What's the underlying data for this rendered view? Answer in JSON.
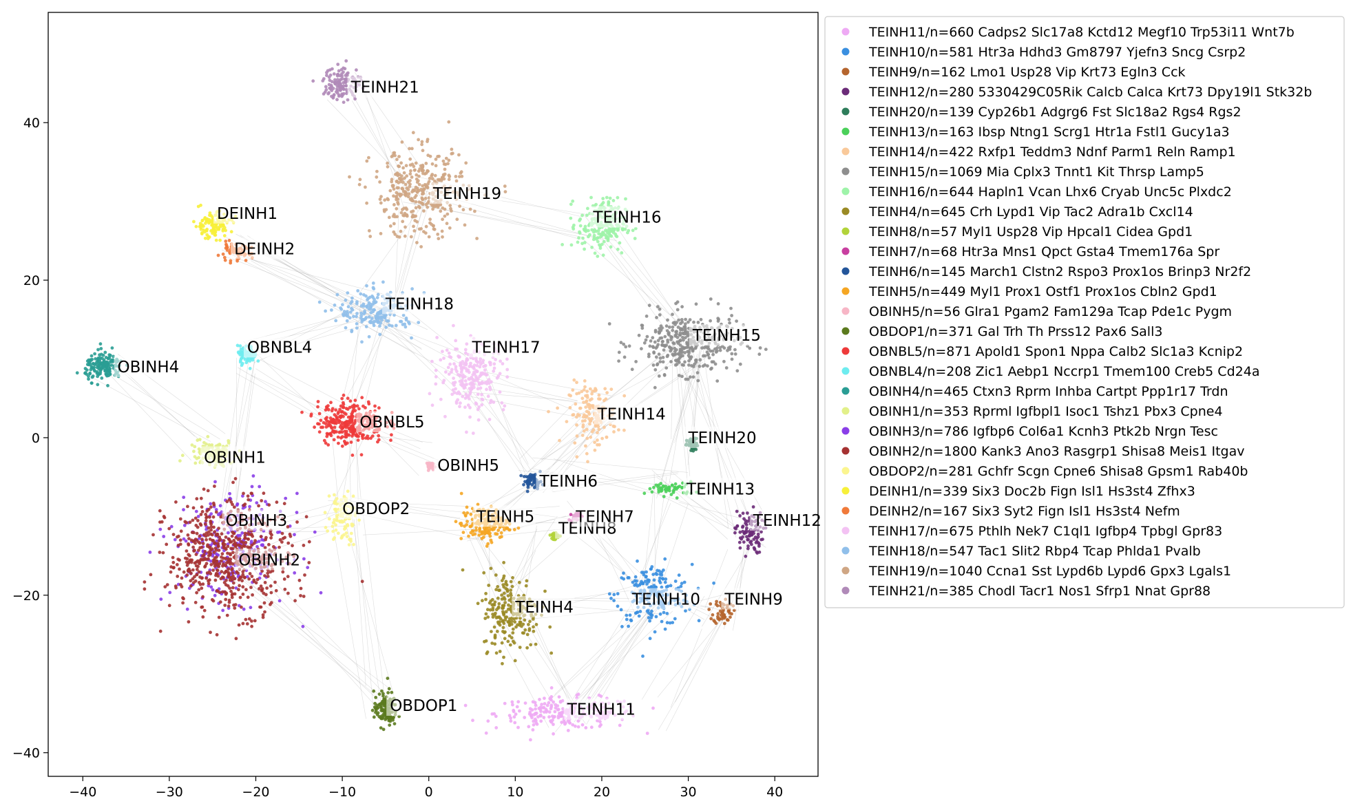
{
  "chart_data": {
    "type": "scatter",
    "title": "",
    "xlabel": "",
    "ylabel": "",
    "xlim": [
      -44,
      45
    ],
    "ylim": [
      -43,
      54
    ],
    "xticks": [
      -40,
      -30,
      -20,
      -10,
      0,
      10,
      20,
      30,
      40
    ],
    "yticks": [
      -40,
      -20,
      0,
      20,
      40
    ],
    "grid": false,
    "legend_position": "outside-right",
    "series": [
      {
        "name": "TEINH11/n=660 Cadps2 Slc17a8 Kctd12 Megf10 Trp53i11 Wnt7b",
        "label": "TEINH11",
        "color": "#eeaaf4",
        "center": [
          16,
          -35
        ],
        "spread": [
          7.5,
          1.8
        ],
        "count": 660,
        "label_pos": [
          16,
          -34.5
        ]
      },
      {
        "name": "TEINH10/n=581 Htr3a Hdhd3 Gm8797 Yjefn3 Sncg Csrp2",
        "label": "TEINH10",
        "color": "#3a8fe0",
        "center": [
          26,
          -20
        ],
        "spread": [
          4,
          3.5
        ],
        "count": 581,
        "label_pos": [
          23.5,
          -20.5
        ]
      },
      {
        "name": "TEINH9/n=162 Lmo1 Usp28 Vip Krt73 Egln3 Cck",
        "label": "TEINH9",
        "color": "#b5652e",
        "center": [
          34,
          -22
        ],
        "spread": [
          1,
          1.5
        ],
        "count": 162,
        "label_pos": [
          34.2,
          -20.5
        ]
      },
      {
        "name": "TEINH12/n=280 5330429C05Rik Calcb Calca Krt73 Dpy19l1 Stk32b",
        "label": "TEINH12",
        "color": "#6b2b78",
        "center": [
          37,
          -12
        ],
        "spread": [
          1.5,
          2.5
        ],
        "count": 280,
        "label_pos": [
          37.5,
          -10.5
        ]
      },
      {
        "name": "TEINH20/n=139 Cyp26b1 Adgrg6 Fst Slc18a2 Rgs4 Rgs2",
        "label": "TEINH20",
        "color": "#2e7d5b",
        "center": [
          30.5,
          -1
        ],
        "spread": [
          0.6,
          0.8
        ],
        "count": 139,
        "label_pos": [
          30,
          0
        ]
      },
      {
        "name": "TEINH13/n=163 Ibsp Ntng1 Scrg1 Htr1a Fstl1 Gucy1a3",
        "label": "TEINH13",
        "color": "#4bd05a",
        "center": [
          28,
          -6.5
        ],
        "spread": [
          2.5,
          0.8
        ],
        "count": 163,
        "label_pos": [
          29.8,
          -6.5
        ]
      },
      {
        "name": "TEINH14/n=422 Rxfp1 Teddm3 Ndnf Parm1 Reln Ramp1",
        "label": "TEINH14",
        "color": "#f9c99a",
        "center": [
          19,
          3
        ],
        "spread": [
          2.5,
          3.5
        ],
        "count": 422,
        "label_pos": [
          19.5,
          3
        ]
      },
      {
        "name": "TEINH15/n=1069 Mia Cplx3 Tnnt1 Kit Thrsp Lamp5",
        "label": "TEINH15",
        "color": "#8e8e8e",
        "center": [
          30,
          12
        ],
        "spread": [
          5.5,
          3.5
        ],
        "count": 1069,
        "label_pos": [
          30.5,
          13
        ]
      },
      {
        "name": "TEINH16/n=644 Hapln1 Vcan Lhx6 Cryab Unc5c Plxdc2",
        "label": "TEINH16",
        "color": "#9ef3a9",
        "center": [
          20,
          27
        ],
        "spread": [
          2.5,
          3
        ],
        "count": 644,
        "label_pos": [
          19,
          28
        ]
      },
      {
        "name": "TEINH4/n=645 Crh Lypd1 Vip Tac2 Adra1b Cxcl14",
        "label": "TEINH4",
        "color": "#9a8a25",
        "center": [
          9.5,
          -22
        ],
        "spread": [
          3,
          4.5
        ],
        "count": 645,
        "label_pos": [
          10,
          -21.5
        ]
      },
      {
        "name": "TEINH8/n=57 Myl1 Usp28 Vip Hpcal1 Cidea Gpd1",
        "label": "TEINH8",
        "color": "#b2d33a",
        "center": [
          14.5,
          -12.5
        ],
        "spread": [
          0.6,
          0.5
        ],
        "count": 57,
        "label_pos": [
          15,
          -11.5
        ]
      },
      {
        "name": "TEINH7/n=68 Htr3a Mns1 Qpct Gsta4 Tmem176a Spr",
        "label": "TEINH7",
        "color": "#c83fa0",
        "center": [
          17,
          -10
        ],
        "spread": [
          0.5,
          0.6
        ],
        "count": 68,
        "label_pos": [
          17,
          -10
        ]
      },
      {
        "name": "TEINH6/n=145 March1 Clstn2 Rspo3 Prox1os Brinp3 Nr2f2",
        "label": "TEINH6",
        "color": "#23559a",
        "center": [
          12,
          -5.5
        ],
        "spread": [
          1,
          0.8
        ],
        "count": 145,
        "label_pos": [
          12.8,
          -5.5
        ]
      },
      {
        "name": "TEINH5/n=449 Myl1 Prox1 Ostf1 Prox1os Cbln2 Gpd1",
        "label": "TEINH5",
        "color": "#f5a623",
        "center": [
          6.5,
          -11
        ],
        "spread": [
          2.5,
          2
        ],
        "count": 449,
        "label_pos": [
          5.5,
          -10
        ]
      },
      {
        "name": "OBINH5/n=56 Glra1 Pgam2 Fam129a Tcap Pde1c Pygm",
        "label": "OBINH5",
        "color": "#f7b6c6",
        "center": [
          0,
          -3.5
        ],
        "spread": [
          0.4,
          0.4
        ],
        "count": 56,
        "label_pos": [
          1,
          -3.5
        ]
      },
      {
        "name": "OBDOP1/n=371 Gal Trh Th Prss12 Pax6 Sall3",
        "label": "OBDOP1",
        "color": "#5b7a1e",
        "center": [
          -5,
          -34.5
        ],
        "spread": [
          1.2,
          2
        ],
        "count": 371,
        "label_pos": [
          -4.5,
          -34
        ]
      },
      {
        "name": "OBNBL5/n=871 Apold1 Spon1 Nppa Calb2 Slc1a3 Kcnip2",
        "label": "OBNBL5",
        "color": "#ee3a3a",
        "center": [
          -9,
          2
        ],
        "spread": [
          3.5,
          2.5
        ],
        "count": 871,
        "label_pos": [
          -8,
          2
        ]
      },
      {
        "name": "OBNBL4/n=208 Zic1 Aebp1 Nccrp1 Tmem100 Creb5 Cd24a",
        "label": "OBNBL4",
        "color": "#6eecef",
        "center": [
          -21,
          10.5
        ],
        "spread": [
          1,
          1
        ],
        "count": 208,
        "label_pos": [
          -21,
          11.5
        ]
      },
      {
        "name": "OBINH4/n=465 Ctxn3 Rprm Inhba Cartpt Ppp1r17 Trdn",
        "label": "OBINH4",
        "color": "#2a9d94",
        "center": [
          -37.5,
          9
        ],
        "spread": [
          2,
          1.6
        ],
        "count": 465,
        "label_pos": [
          -36,
          9
        ]
      },
      {
        "name": "OBINH1/n=353 Rprml Igfbpl1 Isoc1 Tshz1 Pbx3 Cpne4",
        "label": "OBINH1",
        "color": "#e2f08a",
        "center": [
          -25,
          -2
        ],
        "spread": [
          2.5,
          1.5
        ],
        "count": 353,
        "label_pos": [
          -26,
          -2.5
        ]
      },
      {
        "name": "OBINH3/n=786 Igfbp6 Col6a1 Kcnh3 Ptk2b Nrgn Tesc",
        "label": "OBINH3",
        "color": "#8a3ee8",
        "center": [
          -23,
          -14
        ],
        "spread": [
          6,
          6
        ],
        "count": 786,
        "label_pos": [
          -23.5,
          -10.5
        ]
      },
      {
        "name": "OBINH2/n=1800 Kank3 Ano3 Rasgrp1 Shisa8 Meis1 Itgav",
        "label": "OBINH2",
        "color": "#a53232",
        "center": [
          -23,
          -15
        ],
        "spread": [
          6.5,
          6.5
        ],
        "count": 1800,
        "label_pos": [
          -22,
          -15.5
        ]
      },
      {
        "name": "OBDOP2/n=281 Gchfr Scgn Cpne6 Shisa8 Gpsm1 Rab40b",
        "label": "OBDOP2",
        "color": "#fbf58f",
        "center": [
          -10,
          -10
        ],
        "spread": [
          1.5,
          3
        ],
        "count": 281,
        "label_pos": [
          -10,
          -9
        ]
      },
      {
        "name": "DEINH1/n=339 Six3 Doc2b Fign Isl1 Hs3st4 Zfhx3",
        "label": "DEINH1",
        "color": "#f7f03a",
        "center": [
          -25,
          27
        ],
        "spread": [
          2,
          1.5
        ],
        "count": 339,
        "label_pos": [
          -24.5,
          28.5
        ]
      },
      {
        "name": "DEINH2/n=167 Six3 Syt2 Fign Isl1 Hs3st4 Nefm",
        "label": "DEINH2",
        "color": "#f07a3a",
        "center": [
          -22.5,
          23.5
        ],
        "spread": [
          1.8,
          1
        ],
        "count": 167,
        "label_pos": [
          -22.5,
          24
        ]
      },
      {
        "name": "TEINH17/n=675 Pthlh Nek7 C1ql1 Igfbp4 Tpbgl Gpr83",
        "label": "TEINH17",
        "color": "#f3c2f3",
        "center": [
          5,
          8
        ],
        "spread": [
          3.5,
          4
        ],
        "count": 675,
        "label_pos": [
          5,
          11.5
        ]
      },
      {
        "name": "TEINH18/n=547 Tac1 Slit2 Rbp4 Tcap Phlda1 Pvalb",
        "label": "TEINH18",
        "color": "#90bfea",
        "center": [
          -6,
          16
        ],
        "spread": [
          4,
          2.5
        ],
        "count": 547,
        "label_pos": [
          -5,
          17
        ]
      },
      {
        "name": "TEINH19/n=1040 Ccna1 Sst Lypd6b Lypd6 Gpx3 Lgals1",
        "label": "TEINH19",
        "color": "#cfa684",
        "center": [
          -1,
          31
        ],
        "spread": [
          5,
          5
        ],
        "count": 1040,
        "label_pos": [
          0.5,
          31
        ]
      },
      {
        "name": "TEINH21/n=385 Chodl Tacr1 Nos1 Sfrp1 Nnat Gpr88",
        "label": "TEINH21",
        "color": "#b08ab8",
        "center": [
          -10,
          45
        ],
        "spread": [
          2,
          2
        ],
        "count": 385,
        "label_pos": [
          -9,
          44.5
        ]
      }
    ],
    "edges": [
      [
        -22,
        24,
        -2,
        12
      ],
      [
        -22,
        24,
        -6,
        16
      ],
      [
        -21,
        10,
        -9,
        2
      ],
      [
        -21,
        10,
        -6,
        16
      ],
      [
        -37,
        9,
        -25,
        -2
      ],
      [
        -21,
        10,
        -23,
        -10
      ],
      [
        -9,
        2,
        -6,
        16
      ],
      [
        -9,
        2,
        0,
        -3
      ],
      [
        -9,
        2,
        -10,
        -10
      ],
      [
        -10,
        -10,
        6,
        -11
      ],
      [
        -23,
        -14,
        -10,
        -10
      ],
      [
        -23,
        -14,
        -5,
        -34
      ],
      [
        -10,
        -10,
        -5,
        -34
      ],
      [
        -6,
        16,
        -1,
        31
      ],
      [
        -1,
        31,
        -10,
        45
      ],
      [
        -1,
        31,
        20,
        27
      ],
      [
        -6,
        16,
        5,
        8
      ],
      [
        5,
        8,
        12,
        -5
      ],
      [
        5,
        8,
        19,
        3
      ],
      [
        12,
        -5,
        19,
        3
      ],
      [
        19,
        3,
        30,
        12
      ],
      [
        20,
        27,
        30,
        12
      ],
      [
        30,
        12,
        30,
        -1
      ],
      [
        30,
        12,
        28,
        -6
      ],
      [
        12,
        -5,
        28,
        -6
      ],
      [
        12,
        -5,
        6,
        -11
      ],
      [
        6,
        -11,
        9,
        -22
      ],
      [
        9,
        -22,
        16,
        -35
      ],
      [
        16,
        -35,
        26,
        -20
      ],
      [
        26,
        -20,
        28,
        -6
      ],
      [
        26,
        -20,
        34,
        -22
      ],
      [
        28,
        -6,
        37,
        -12
      ],
      [
        37,
        -12,
        34,
        -22
      ],
      [
        17,
        -10,
        26,
        -20
      ],
      [
        14,
        -12,
        9,
        -22
      ],
      [
        9,
        -22,
        26,
        -20
      ],
      [
        6,
        -11,
        17,
        -10
      ],
      [
        34,
        -22,
        26,
        -35
      ],
      [
        19,
        3,
        12,
        -5
      ],
      [
        26,
        -20,
        16,
        -35
      ],
      [
        30,
        12,
        37,
        -12
      ]
    ]
  }
}
